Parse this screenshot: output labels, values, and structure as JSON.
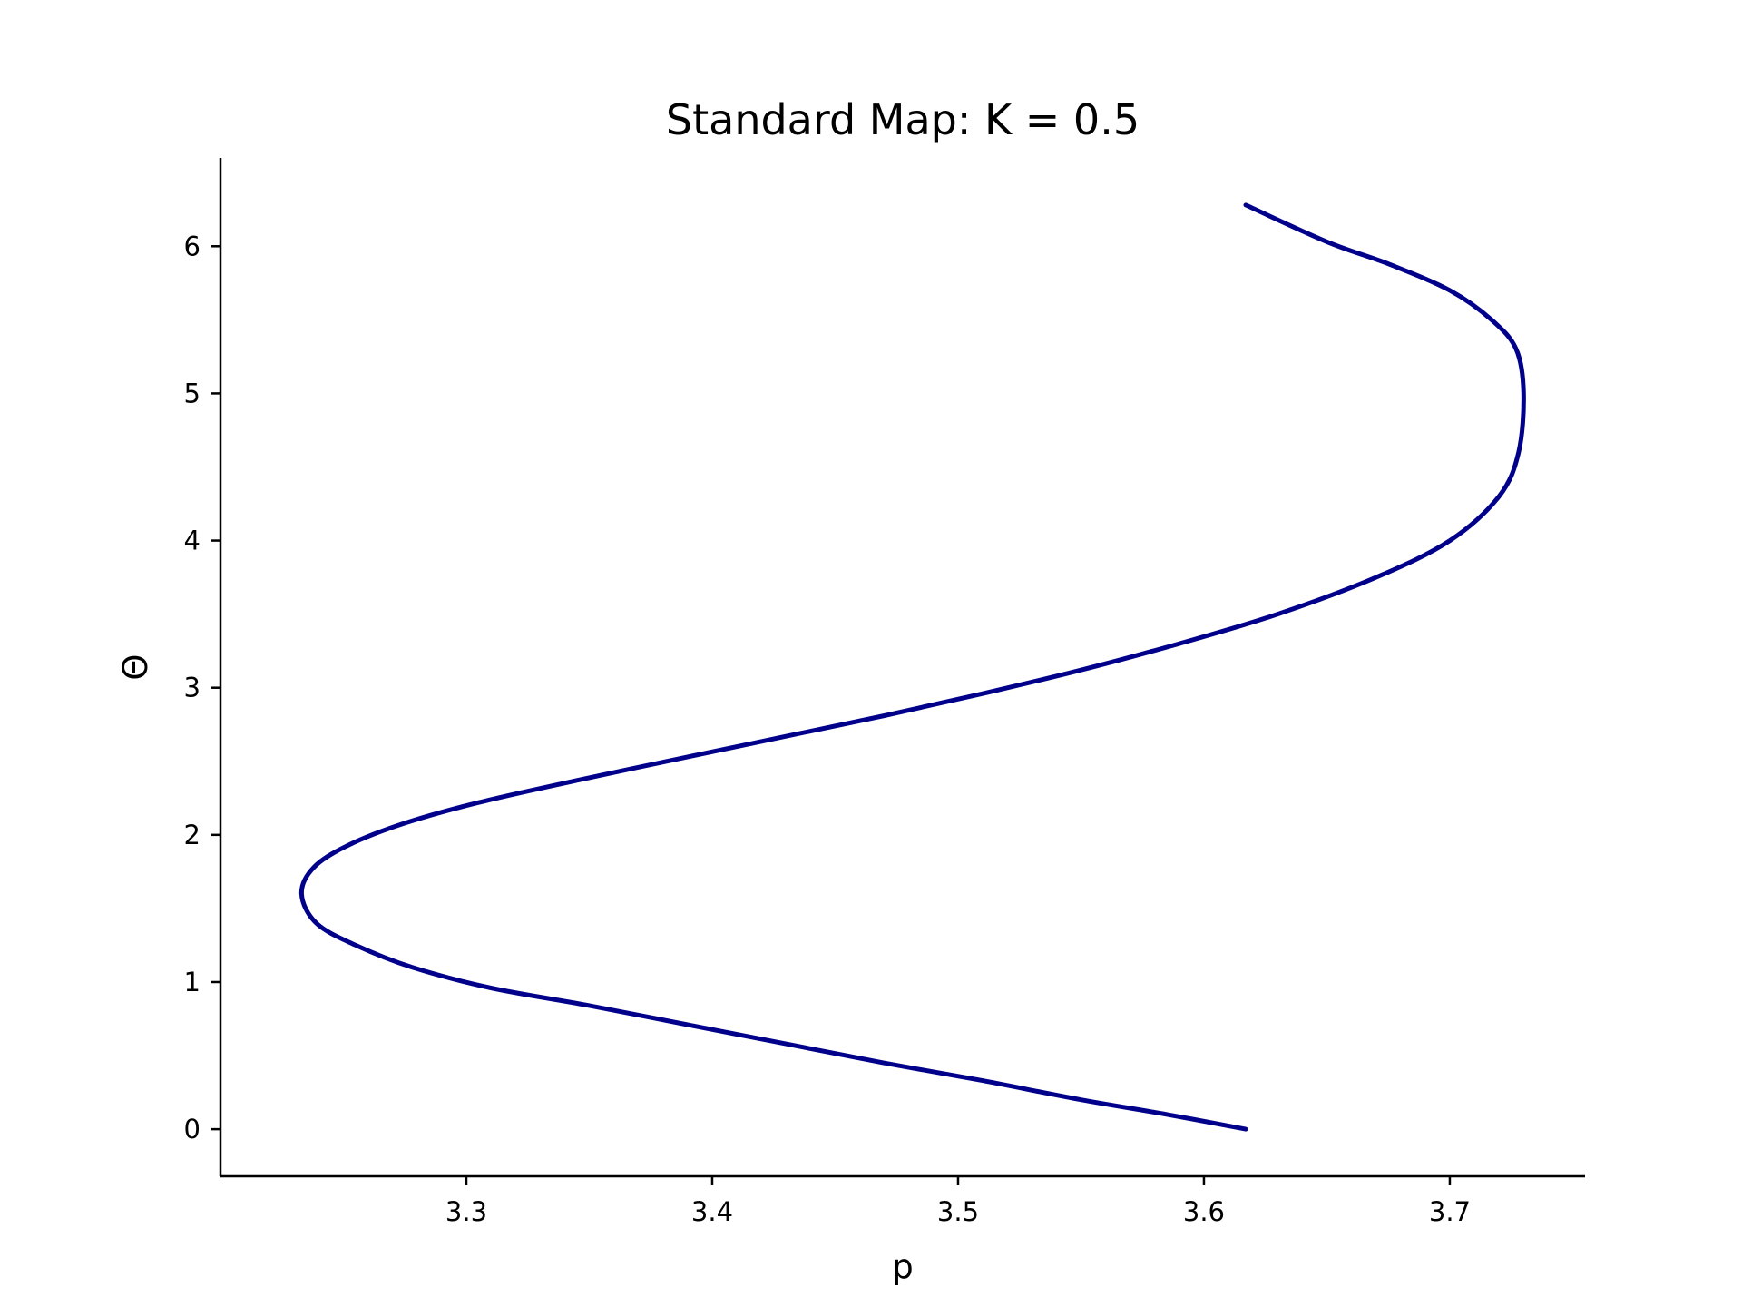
{
  "chart_data": {
    "type": "line",
    "title": "Standard Map: K = 0.5",
    "xlabel": "p",
    "ylabel": "Θ",
    "xlim": [
      3.2,
      3.755
    ],
    "ylim": [
      -0.32,
      6.6
    ],
    "x_ticks": [
      3.3,
      3.4,
      3.5,
      3.6,
      3.7
    ],
    "x_tick_labels": [
      "3.3",
      "3.4",
      "3.5",
      "3.6",
      "3.7"
    ],
    "y_ticks": [
      0,
      1,
      2,
      3,
      4,
      5,
      6
    ],
    "y_tick_labels": [
      "0",
      "1",
      "2",
      "3",
      "4",
      "5",
      "6"
    ],
    "grid": false,
    "legend": "none",
    "series": [
      {
        "color": "#00008b",
        "points": [
          {
            "p": 3.617,
            "theta": 0.0
          },
          {
            "p": 3.585,
            "theta": 0.1
          },
          {
            "p": 3.55,
            "theta": 0.2
          },
          {
            "p": 3.51,
            "theta": 0.33
          },
          {
            "p": 3.47,
            "theta": 0.45
          },
          {
            "p": 3.43,
            "theta": 0.58
          },
          {
            "p": 3.39,
            "theta": 0.71
          },
          {
            "p": 3.35,
            "theta": 0.84
          },
          {
            "p": 3.31,
            "theta": 0.96
          },
          {
            "p": 3.278,
            "theta": 1.1
          },
          {
            "p": 3.255,
            "theta": 1.25
          },
          {
            "p": 3.239,
            "theta": 1.4
          },
          {
            "p": 3.233,
            "theta": 1.6
          },
          {
            "p": 3.238,
            "theta": 1.78
          },
          {
            "p": 3.252,
            "theta": 1.93
          },
          {
            "p": 3.275,
            "theta": 2.08
          },
          {
            "p": 3.305,
            "theta": 2.22
          },
          {
            "p": 3.345,
            "theta": 2.37
          },
          {
            "p": 3.39,
            "theta": 2.53
          },
          {
            "p": 3.43,
            "theta": 2.67
          },
          {
            "p": 3.47,
            "theta": 2.81
          },
          {
            "p": 3.51,
            "theta": 2.96
          },
          {
            "p": 3.55,
            "theta": 3.12
          },
          {
            "p": 3.59,
            "theta": 3.3
          },
          {
            "p": 3.63,
            "theta": 3.5
          },
          {
            "p": 3.67,
            "theta": 3.75
          },
          {
            "p": 3.7,
            "theta": 4.0
          },
          {
            "p": 3.72,
            "theta": 4.3
          },
          {
            "p": 3.728,
            "theta": 4.6
          },
          {
            "p": 3.73,
            "theta": 5.0
          },
          {
            "p": 3.727,
            "theta": 5.3
          },
          {
            "p": 3.717,
            "theta": 5.5
          },
          {
            "p": 3.7,
            "theta": 5.7
          },
          {
            "p": 3.675,
            "theta": 5.88
          },
          {
            "p": 3.65,
            "theta": 6.03
          },
          {
            "p": 3.617,
            "theta": 6.28
          }
        ]
      }
    ]
  }
}
